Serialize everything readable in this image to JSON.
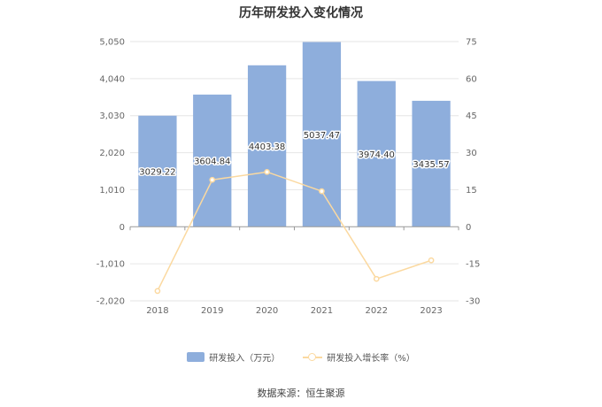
{
  "title": "历年研发投入变化情况",
  "source": "数据来源：恒生聚源",
  "colors": {
    "bar": "#8eaedc",
    "line": "#fbd9a0",
    "grid": "#e6e6e6",
    "axis": "#999999",
    "tick_text": "#666666"
  },
  "legend": [
    {
      "label": "研发投入（万元）",
      "kind": "bar"
    },
    {
      "label": "研发投入增长率（%）",
      "kind": "line"
    }
  ],
  "chart_data": {
    "type": "bar",
    "categories": [
      "2018",
      "2019",
      "2020",
      "2021",
      "2022",
      "2023"
    ],
    "series": [
      {
        "name": "研发投入（万元）",
        "type": "bar",
        "axis": "left",
        "values": [
          3029.22,
          3604.84,
          4403.38,
          5037.47,
          3974.4,
          3435.57
        ],
        "labels": [
          "3029.22",
          "3604.84",
          "4403.38",
          "5037.47",
          "3974.40",
          "3435.57"
        ]
      },
      {
        "name": "研发投入增长率（%）",
        "type": "line",
        "axis": "right",
        "values": [
          -26.0,
          19.0,
          22.2,
          14.4,
          -21.1,
          -13.6
        ]
      }
    ],
    "y_left": {
      "min": -2020,
      "max": 5050,
      "ticks": [
        "-2,020",
        "-1,010",
        "0",
        "1,010",
        "2,020",
        "3,030",
        "4,040",
        "5,050"
      ]
    },
    "y_right": {
      "min": -30,
      "max": 75,
      "ticks": [
        "-30",
        "-15",
        "0",
        "15",
        "30",
        "45",
        "60",
        "75"
      ]
    },
    "grid": true,
    "legend_position": "bottom"
  }
}
